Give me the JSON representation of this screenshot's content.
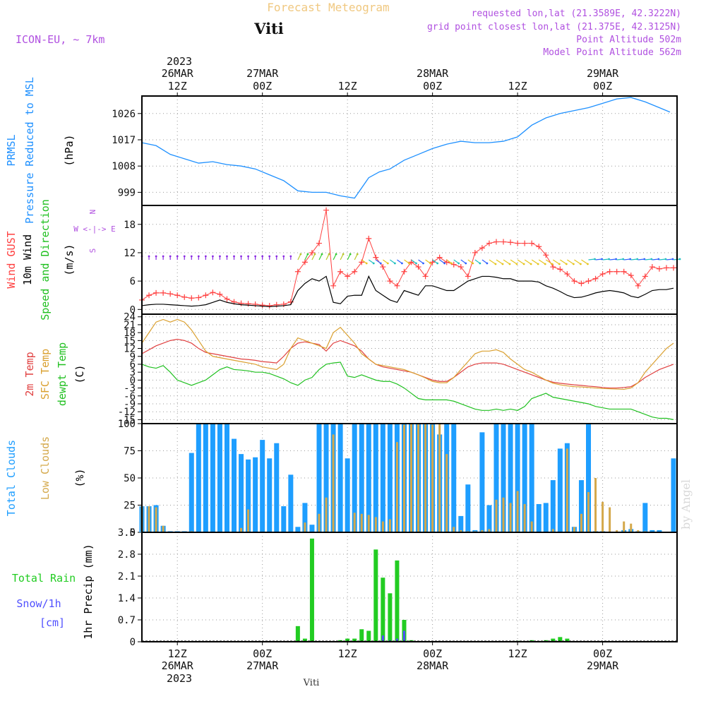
{
  "header": {
    "title": "Forecast Meteogram",
    "location": "Viti",
    "model": "ICON-EU, ~ 7km",
    "requested": "requested lon,lat (21.3589E, 42.3222N)",
    "gridpoint": "grid point closest lon,lat (21.375E, 42.3125N)",
    "point_alt": "Point Altitude 502m",
    "model_alt": "Model Point Altitude 562m",
    "footer_location": "Viti",
    "watermark": "by Angel"
  },
  "colors": {
    "pressure": "#1e90ff",
    "gust": "#ff4040",
    "wind": "#000000",
    "temp2m": "#e04040",
    "sfc": "#daa030",
    "dewpt": "#20c020",
    "clouds": "#1e9eff",
    "low": "#d4a84a",
    "rain": "#22cc22",
    "snow": "#5050ff"
  },
  "time_axis": {
    "top_year": "2023",
    "ticks": [
      {
        "t": 12,
        "l1": "26MAR",
        "l2": "12Z",
        "b1": "12Z",
        "b2": "26MAR"
      },
      {
        "t": 24,
        "l1": "27MAR",
        "l2": "00Z",
        "b1": "00Z",
        "b2": "27MAR"
      },
      {
        "t": 36,
        "l1": "",
        "l2": "12Z",
        "b1": "12Z",
        "b2": ""
      },
      {
        "t": 48,
        "l1": "28MAR",
        "l2": "00Z",
        "b1": "00Z",
        "b2": "28MAR"
      },
      {
        "t": 60,
        "l1": "",
        "l2": "12Z",
        "b1": "12Z",
        "b2": ""
      },
      {
        "t": 72,
        "l1": "29MAR",
        "l2": "00Z",
        "b1": "00Z",
        "b2": "29MAR"
      }
    ],
    "bottom_year": "2023"
  },
  "chart_data": [
    {
      "type": "line",
      "name": "pressure",
      "ylabels": [
        "PRMSL",
        "Pressure Reduced to MSL",
        "(hPa)"
      ],
      "yticks": [
        999,
        1008,
        1017,
        1026
      ],
      "ylim": [
        994.5,
        1032
      ],
      "x": [
        7,
        9,
        11,
        13,
        15,
        17,
        19,
        21,
        23,
        25,
        27,
        29,
        31,
        33,
        35,
        37,
        39,
        40.5,
        42,
        44,
        46,
        48,
        50,
        52,
        54,
        56,
        58,
        60,
        62,
        64,
        66,
        68,
        70,
        72,
        74,
        76,
        78,
        80,
        81.5
      ],
      "series": [
        {
          "values": [
            1016,
            1015,
            1012,
            1010.5,
            1009,
            1009.5,
            1008.5,
            1008,
            1007,
            1005,
            1003,
            999.5,
            999,
            999,
            997.8,
            997,
            1004,
            1006,
            1007,
            1010,
            1012,
            1014,
            1015.5,
            1016.5,
            1016,
            1016,
            1016.5,
            1018,
            1022,
            1024.5,
            1026,
            1027,
            1028,
            1029.5,
            1031,
            1031.5,
            1030,
            1028,
            1026.5
          ]
        }
      ]
    },
    {
      "type": "line",
      "name": "wind",
      "ylabels": [
        "Wind GUST",
        "10m Wind",
        "Speed and Direction",
        "(m/s)"
      ],
      "yticks": [
        0,
        6,
        12,
        18
      ],
      "ylim": [
        -1,
        22
      ],
      "compass": [
        "N",
        "W <-|-> E",
        "S"
      ],
      "x": [
        7,
        8,
        9,
        10,
        11,
        12,
        13,
        14,
        15,
        16,
        17,
        18,
        19,
        20,
        21,
        22,
        23,
        24,
        25,
        26,
        27,
        28,
        29,
        30,
        31,
        32,
        33,
        34,
        35,
        36,
        37,
        38,
        39,
        40,
        41,
        42,
        43,
        44,
        45,
        46,
        47,
        48,
        49,
        50,
        51,
        52,
        53,
        54,
        55,
        56,
        57,
        58,
        59,
        60,
        61,
        62,
        63,
        64,
        65,
        66,
        67,
        68,
        69,
        70,
        71,
        72,
        73,
        74,
        75,
        76,
        77,
        78,
        79,
        80,
        81,
        82
      ],
      "series": [
        {
          "name": "Wind GUST",
          "values": [
            2,
            3,
            3.5,
            3.5,
            3.3,
            3,
            2.6,
            2.4,
            2.5,
            3,
            3.6,
            3.2,
            2.2,
            1.6,
            1.3,
            1.2,
            1.1,
            0.9,
            0.8,
            1,
            1.1,
            1.6,
            8,
            10,
            12,
            14,
            21,
            5,
            8,
            7,
            8,
            10,
            15,
            11,
            9,
            6,
            5,
            8,
            10,
            9,
            7,
            10,
            11,
            10,
            9.5,
            9,
            7,
            12,
            13,
            14,
            14.3,
            14.3,
            14.2,
            14,
            14,
            14,
            13.3,
            11.5,
            9,
            8.5,
            7.5,
            6,
            5.5,
            6,
            6.5,
            7.5,
            8,
            8,
            8,
            7.2,
            5,
            7,
            9,
            8.6,
            8.8,
            8.8
          ]
        },
        {
          "name": "10m Wind",
          "values": [
            0.8,
            1,
            1.1,
            1.1,
            1,
            0.9,
            0.8,
            0.7,
            0.8,
            1,
            1.5,
            2,
            1.5,
            1.2,
            1,
            0.9,
            0.8,
            0.7,
            0.6,
            0.7,
            0.8,
            1,
            4,
            5.5,
            6.5,
            6,
            7,
            1.5,
            1.2,
            2.8,
            3,
            3,
            7,
            4,
            3,
            2,
            1.5,
            4,
            3.5,
            3,
            5,
            5,
            4.5,
            4,
            4,
            5,
            6,
            6.5,
            7,
            7,
            6.8,
            6.5,
            6.5,
            6,
            6,
            6,
            5.8,
            5,
            4.5,
            3.8,
            3,
            2.5,
            2.6,
            3,
            3.5,
            3.8,
            4,
            3.8,
            3.5,
            2.8,
            2.5,
            3.2,
            4,
            4.2,
            4.2,
            4.5
          ]
        }
      ]
    },
    {
      "type": "line",
      "name": "temperature",
      "ylabels": [
        "2m Temp",
        "SFC Temp",
        "dewpt Temp",
        "(C)"
      ],
      "yticks": [
        -15,
        -12,
        -9,
        -6,
        -3,
        0,
        3,
        6,
        9,
        12,
        15,
        18,
        21,
        24
      ],
      "ylim": [
        -16.5,
        25
      ],
      "x": [
        7,
        8,
        9,
        10,
        11,
        12,
        13,
        14,
        15,
        16,
        17,
        18,
        19,
        20,
        21,
        22,
        23,
        24,
        25,
        26,
        27,
        28,
        29,
        30,
        31,
        32,
        33,
        34,
        35,
        36,
        37,
        38,
        39,
        40,
        41,
        42,
        43,
        44,
        45,
        46,
        47,
        48,
        49,
        50,
        51,
        52,
        53,
        54,
        55,
        56,
        57,
        58,
        59,
        60,
        61,
        62,
        63,
        64,
        65,
        66,
        67,
        68,
        69,
        70,
        71,
        72,
        73,
        74,
        75,
        76,
        77,
        78,
        79,
        80,
        81,
        82
      ],
      "series": [
        {
          "name": "2m Temp",
          "values": [
            10,
            11.5,
            13,
            14,
            15,
            15.5,
            15,
            14,
            12,
            10.5,
            10,
            9.5,
            9,
            8.5,
            8,
            7.8,
            7.5,
            7,
            6.8,
            6.5,
            9,
            12,
            14,
            14.5,
            14,
            13.5,
            11,
            14,
            15,
            14,
            13,
            11,
            8,
            6,
            5,
            4.5,
            4,
            3.5,
            3,
            2,
            1,
            0,
            -0.5,
            -0.5,
            1,
            3,
            5,
            6,
            6.5,
            6.5,
            6.5,
            6,
            5,
            4,
            3,
            2,
            1,
            0,
            -0.8,
            -1.2,
            -1.5,
            -1.8,
            -2,
            -2.3,
            -2.5,
            -2.8,
            -3,
            -3,
            -2.8,
            -2.5,
            -1,
            1,
            2.5,
            4,
            5,
            6
          ]
        },
        {
          "name": "SFC Temp",
          "values": [
            14,
            18,
            22,
            23,
            22,
            23,
            22,
            19,
            15,
            11,
            9,
            8.5,
            8,
            7.5,
            7,
            6.5,
            6,
            5,
            4.5,
            4,
            6,
            12,
            16,
            15,
            14,
            13,
            12,
            18,
            20,
            17,
            14,
            10,
            8,
            6,
            5.5,
            5,
            4.5,
            4,
            3,
            2,
            0.8,
            -0.5,
            -1,
            -1,
            1,
            4,
            7,
            10,
            11,
            11,
            11.5,
            10.5,
            8,
            6,
            4,
            3,
            1.5,
            0,
            -1.2,
            -1.8,
            -2.2,
            -2.5,
            -2.6,
            -2.8,
            -3,
            -3.2,
            -3.3,
            -3.4,
            -3.5,
            -3,
            -1,
            3,
            6,
            9,
            12,
            14
          ]
        },
        {
          "name": "dewpt Temp",
          "values": [
            6,
            5,
            4.5,
            5.5,
            3,
            0,
            -1,
            -2,
            -1,
            0,
            2,
            4,
            5,
            4,
            3.8,
            3.5,
            3,
            3,
            2.5,
            1.5,
            0.5,
            -1,
            -2,
            0,
            1,
            4,
            6,
            6.5,
            6.8,
            1.5,
            1,
            2,
            1,
            0,
            -0.5,
            -0.5,
            -1.5,
            -3,
            -5,
            -7,
            -7.5,
            -7.5,
            -7.5,
            -7.5,
            -8,
            -9,
            -10,
            -11,
            -11.5,
            -11.5,
            -11,
            -11.5,
            -11,
            -11.5,
            -10,
            -7,
            -6,
            -5,
            -6.5,
            -7,
            -7.5,
            -8,
            -8.5,
            -9,
            -10,
            -10.5,
            -11,
            -11,
            -11,
            -11,
            -12,
            -13,
            -14,
            -14.5,
            -14.5,
            -15
          ]
        }
      ]
    },
    {
      "type": "bar",
      "name": "clouds",
      "ylabels": [
        "Total Clouds",
        "Low Clouds",
        "(%)"
      ],
      "yticks": [
        0,
        25,
        50,
        75,
        100
      ],
      "ylim": [
        0,
        100
      ],
      "x": [
        7,
        8,
        9,
        10,
        11,
        12,
        13,
        14,
        15,
        16,
        17,
        18,
        19,
        20,
        21,
        22,
        23,
        24,
        25,
        26,
        27,
        28,
        29,
        30,
        31,
        32,
        33,
        34,
        35,
        36,
        37,
        38,
        39,
        40,
        41,
        42,
        43,
        44,
        45,
        46,
        47,
        48,
        49,
        50,
        51,
        52,
        53,
        54,
        55,
        56,
        57,
        58,
        59,
        60,
        61,
        62,
        63,
        64,
        65,
        66,
        67,
        68,
        69,
        70,
        71,
        72,
        73,
        74,
        75,
        76,
        77,
        78,
        79,
        80,
        81,
        82
      ],
      "series": [
        {
          "name": "Total Clouds",
          "values": [
            24,
            24,
            25,
            6,
            1,
            1,
            1,
            73,
            100,
            100,
            100,
            100,
            100,
            86,
            72,
            67,
            69,
            85,
            68,
            82,
            24,
            53,
            5,
            27,
            7,
            100,
            100,
            100,
            100,
            68,
            100,
            100,
            100,
            100,
            100,
            100,
            100,
            100,
            100,
            100,
            100,
            100,
            90,
            100,
            100,
            15,
            44,
            2,
            92,
            25,
            100,
            100,
            100,
            100,
            100,
            100,
            26,
            27,
            48,
            77,
            82,
            5,
            48,
            100,
            1,
            1,
            0,
            0,
            2,
            3,
            1,
            27,
            2,
            2,
            0,
            68
          ]
        },
        {
          "name": "Low Clouds",
          "values": [
            24,
            24,
            23,
            6,
            0,
            0,
            0,
            1,
            0,
            0,
            0,
            0,
            0,
            0,
            4,
            21,
            0,
            0,
            0,
            0,
            0,
            0,
            0,
            9,
            0,
            17,
            32,
            90,
            0,
            0,
            18,
            17,
            16,
            14,
            10,
            12,
            83,
            99,
            100,
            100,
            100,
            99,
            100,
            72,
            5,
            2,
            1,
            1,
            2,
            3,
            30,
            32,
            27,
            38,
            26,
            10,
            0,
            0,
            3,
            0,
            77,
            5,
            17,
            37,
            50,
            28,
            23,
            2,
            10,
            8,
            2,
            1,
            0,
            0,
            0,
            0
          ]
        }
      ]
    },
    {
      "type": "bar",
      "name": "precip",
      "ylabels": [
        "Total  Rain",
        "Snow/1h",
        "[cm]",
        "1hr Precip (mm)"
      ],
      "yticks": [
        0,
        0.7,
        1.4,
        2.1,
        2.8,
        3.5
      ],
      "ylim": [
        0,
        3.5
      ],
      "x": [
        29,
        30,
        31,
        32,
        33,
        34,
        35,
        36,
        37,
        38,
        39,
        40,
        41,
        42,
        43,
        44,
        45,
        46,
        47,
        48,
        49,
        50,
        51,
        52,
        53,
        54,
        55,
        56,
        57,
        58,
        59,
        60,
        61,
        62,
        63,
        64,
        65,
        66,
        67,
        68,
        69,
        70,
        71,
        72,
        73,
        74,
        75,
        76,
        77,
        78,
        79,
        80,
        81,
        82
      ],
      "series": [
        {
          "name": "Total Rain",
          "values": [
            0.5,
            0.1,
            3.3,
            0,
            0,
            0.02,
            0.05,
            0.1,
            0.1,
            0.4,
            0.35,
            2.95,
            2.05,
            1.55,
            2.6,
            0.7,
            0.05,
            0.02,
            0,
            0,
            0,
            0,
            0,
            0,
            0,
            0,
            0,
            0,
            0,
            0,
            0,
            0.03,
            0.02,
            0.05,
            0.02,
            0.05,
            0.1,
            0.15,
            0.1,
            0,
            0,
            0,
            0,
            0,
            0,
            0,
            0,
            0,
            0,
            0,
            0,
            0,
            0,
            0
          ]
        },
        {
          "name": "Snow/1h",
          "values": [
            0,
            0,
            0,
            0,
            0,
            0,
            0,
            0,
            0,
            0,
            0,
            0,
            0.2,
            0.05,
            0.1,
            0.35,
            0,
            0,
            0,
            0,
            0,
            0,
            0,
            0,
            0,
            0,
            0,
            0,
            0,
            0,
            0,
            0,
            0,
            0,
            0,
            0,
            0,
            0,
            0,
            0,
            0,
            0,
            0,
            0,
            0,
            0,
            0,
            0,
            0,
            0,
            0,
            0,
            0,
            0
          ]
        }
      ]
    }
  ]
}
